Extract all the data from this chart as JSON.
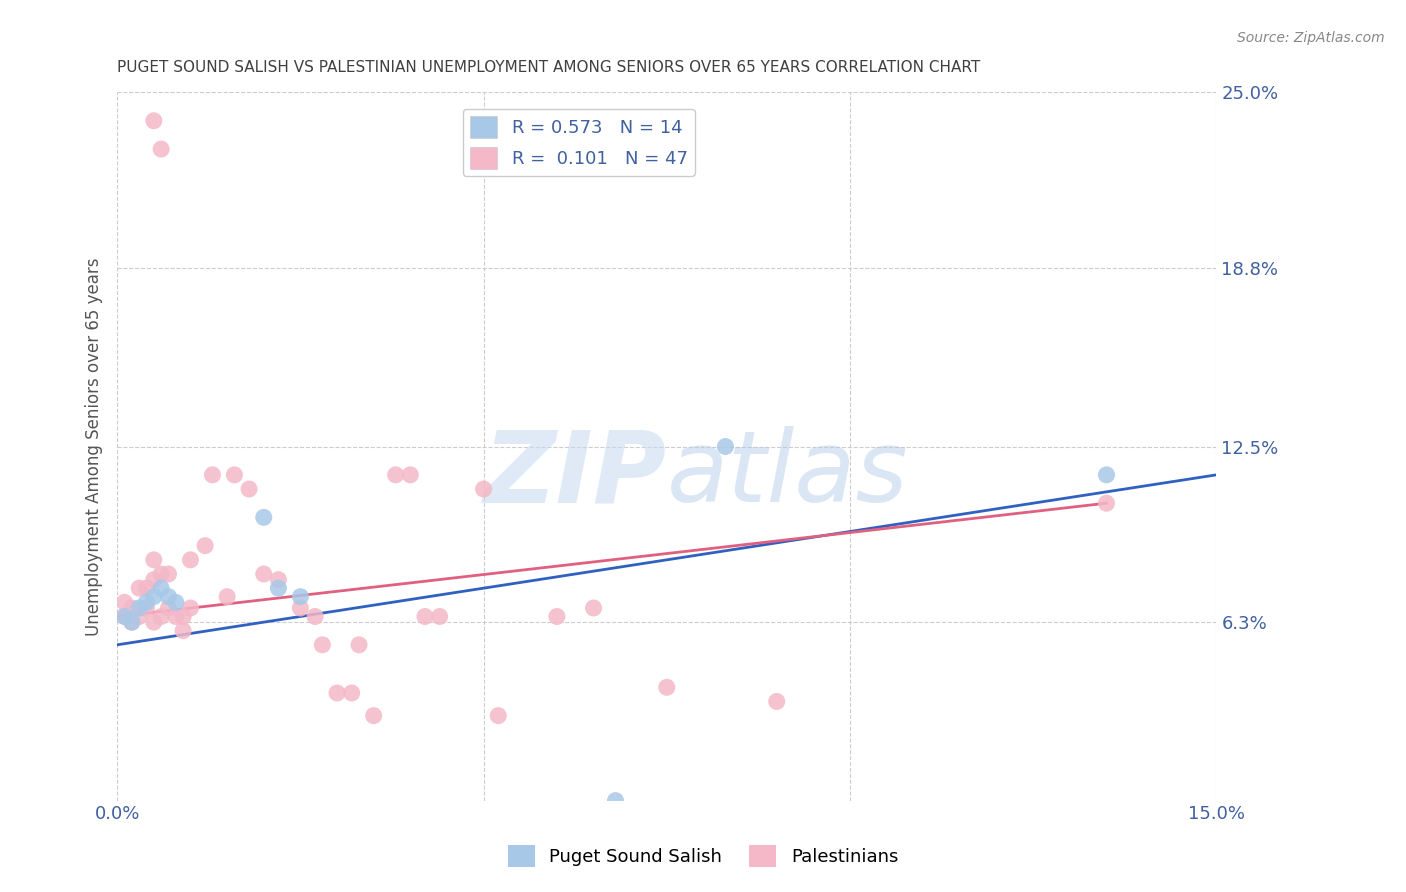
{
  "title": "PUGET SOUND SALISH VS PALESTINIAN UNEMPLOYMENT AMONG SENIORS OVER 65 YEARS CORRELATION CHART",
  "source": "Source: ZipAtlas.com",
  "ylabel": "Unemployment Among Seniors over 65 years",
  "xlabel_blue": "Puget Sound Salish",
  "xlabel_pink": "Palestinians",
  "xlim": [
    0.0,
    0.15
  ],
  "ylim": [
    0.0,
    0.25
  ],
  "ytick_right": [
    0.063,
    0.125,
    0.188,
    0.25
  ],
  "ytick_right_labels": [
    "6.3%",
    "12.5%",
    "18.8%",
    "25.0%"
  ],
  "legend_r_blue": "0.573",
  "legend_n_blue": "14",
  "legend_r_pink": "0.101",
  "legend_n_pink": "47",
  "blue_color": "#a8c8e8",
  "pink_color": "#f4b8c8",
  "blue_line_color": "#3060c0",
  "pink_line_color": "#e06080",
  "watermark_zip": "ZIP",
  "watermark_atlas": "atlas",
  "blue_scatter_x": [
    0.001,
    0.002,
    0.003,
    0.004,
    0.005,
    0.006,
    0.007,
    0.008,
    0.02,
    0.022,
    0.025,
    0.068,
    0.083,
    0.135
  ],
  "blue_scatter_y": [
    0.065,
    0.063,
    0.068,
    0.07,
    0.072,
    0.075,
    0.072,
    0.07,
    0.1,
    0.075,
    0.072,
    0.0,
    0.125,
    0.115
  ],
  "pink_scatter_x": [
    0.001,
    0.001,
    0.002,
    0.002,
    0.003,
    0.003,
    0.004,
    0.004,
    0.005,
    0.005,
    0.005,
    0.006,
    0.006,
    0.007,
    0.007,
    0.008,
    0.009,
    0.009,
    0.01,
    0.01,
    0.012,
    0.013,
    0.015,
    0.016,
    0.018,
    0.02,
    0.022,
    0.025,
    0.027,
    0.028,
    0.03,
    0.032,
    0.033,
    0.035,
    0.038,
    0.04,
    0.042,
    0.044,
    0.05,
    0.052,
    0.06,
    0.065,
    0.075,
    0.09,
    0.135,
    0.005,
    0.006
  ],
  "pink_scatter_y": [
    0.065,
    0.07,
    0.063,
    0.068,
    0.065,
    0.075,
    0.068,
    0.075,
    0.063,
    0.078,
    0.085,
    0.065,
    0.08,
    0.068,
    0.08,
    0.065,
    0.06,
    0.065,
    0.068,
    0.085,
    0.09,
    0.115,
    0.072,
    0.115,
    0.11,
    0.08,
    0.078,
    0.068,
    0.065,
    0.055,
    0.038,
    0.038,
    0.055,
    0.03,
    0.115,
    0.115,
    0.065,
    0.065,
    0.11,
    0.03,
    0.065,
    0.068,
    0.04,
    0.035,
    0.105,
    0.24,
    0.23
  ],
  "blue_trendline": [
    0.0,
    0.15,
    0.055,
    0.115
  ],
  "pink_trendline": [
    0.0,
    0.135,
    0.065,
    0.105
  ],
  "background_color": "#ffffff",
  "grid_color": "#cccccc",
  "text_color": "#4060a0",
  "title_color": "#404040"
}
